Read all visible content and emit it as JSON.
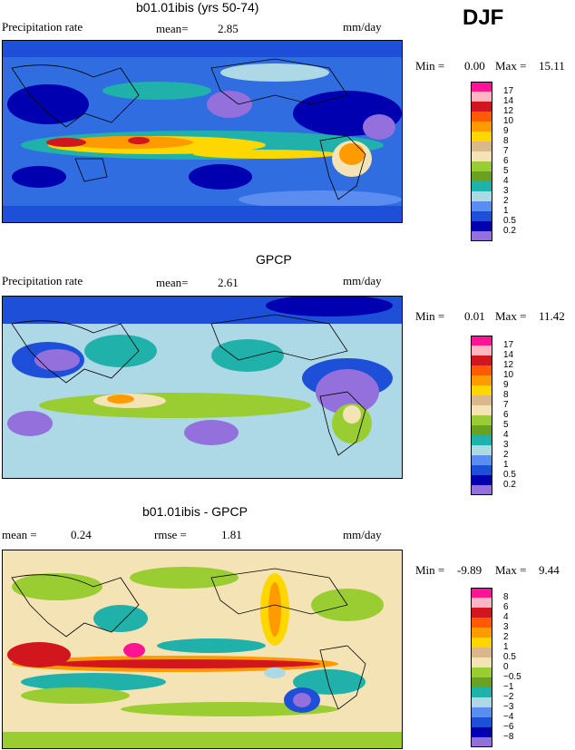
{
  "season": "DJF",
  "panels": [
    {
      "title": "b01.01ibis (yrs 50-74)",
      "left_label": "Precipitation rate",
      "stat1_label": "mean=",
      "stat1_value": "2.85",
      "stat2_label": "",
      "stat2_value": "",
      "units": "mm/day",
      "min_label": "Min =",
      "min_value": "0.00",
      "max_label": "Max =",
      "max_value": "15.11",
      "colorbar_labels": [
        "17",
        "14",
        "12",
        "10",
        "9",
        "8",
        "7",
        "6",
        "5",
        "4",
        "3",
        "2",
        "1",
        "0.5",
        "0.2"
      ],
      "colorbar_colors": [
        "#ff1493",
        "#ffb6c1",
        "#d2161e",
        "#ff5a00",
        "#ff9a00",
        "#ffd700",
        "#d9b88a",
        "#f4e3b5",
        "#9acd32",
        "#6aa121",
        "#20b2aa",
        "#add8e6",
        "#5b8df0",
        "#1e4fd8",
        "#0000b0",
        "#9370db"
      ]
    },
    {
      "title": "GPCP",
      "left_label": "Precipitation rate",
      "stat1_label": "mean=",
      "stat1_value": "2.61",
      "stat2_label": "",
      "stat2_value": "",
      "units": "mm/day",
      "min_label": "Min =",
      "min_value": "0.01",
      "max_label": "Max =",
      "max_value": "11.42",
      "colorbar_labels": [
        "17",
        "14",
        "12",
        "10",
        "9",
        "8",
        "7",
        "6",
        "5",
        "4",
        "3",
        "2",
        "1",
        "0.5",
        "0.2"
      ],
      "colorbar_colors": [
        "#ff1493",
        "#ffb6c1",
        "#d2161e",
        "#ff5a00",
        "#ff9a00",
        "#ffd700",
        "#d9b88a",
        "#f4e3b5",
        "#9acd32",
        "#6aa121",
        "#20b2aa",
        "#add8e6",
        "#5b8df0",
        "#1e4fd8",
        "#0000b0",
        "#9370db"
      ]
    },
    {
      "title": "b01.01ibis - GPCP",
      "left_label": "mean =",
      "stat1_label": "0.24",
      "stat1_value": "",
      "stat2_label": "rmse =",
      "stat2_value": "1.81",
      "units": "mm/day",
      "min_label": "Min =",
      "min_value": "-9.89",
      "max_label": "Max =",
      "max_value": "9.44",
      "colorbar_labels": [
        "8",
        "6",
        "4",
        "3",
        "2",
        "1",
        "0.5",
        "0",
        "−0.5",
        "−1",
        "−2",
        "−3",
        "−4",
        "−6",
        "−8"
      ],
      "colorbar_colors": [
        "#ff1493",
        "#ffb6c1",
        "#d2161e",
        "#ff5a00",
        "#ff9a00",
        "#ffd700",
        "#d9b88a",
        "#f4e3b5",
        "#9acd32",
        "#6aa121",
        "#20b2aa",
        "#add8e6",
        "#5b8df0",
        "#1e4fd8",
        "#0000b0",
        "#9370db"
      ]
    }
  ],
  "field_colors": {
    "dry": "#0000b0",
    "low": "#1e4fd8",
    "mid": "#5b8df0",
    "light": "#add8e6",
    "teal": "#20b2aa",
    "green": "#9acd32",
    "tan": "#f4e3b5",
    "yellow": "#ffd700",
    "orange": "#ff9a00",
    "red": "#d2161e",
    "pink": "#ff1493",
    "purple": "#9370db"
  }
}
